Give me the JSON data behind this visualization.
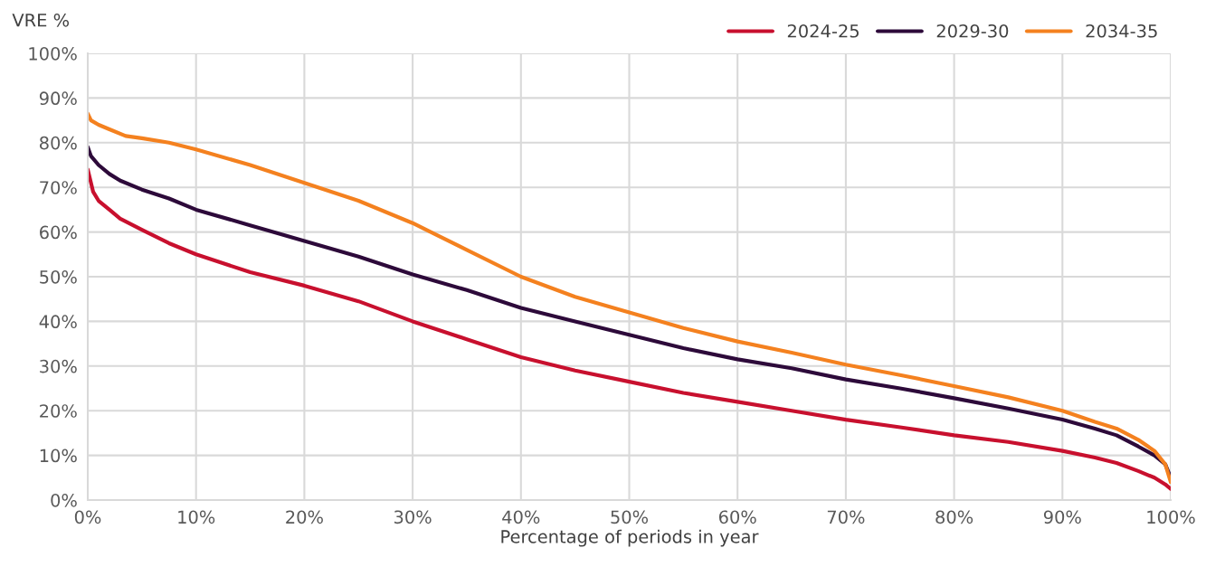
{
  "chart_data": {
    "type": "line",
    "ylabel": "VRE %",
    "xlabel": "Percentage of periods in year",
    "xlim": [
      0,
      100
    ],
    "ylim": [
      0,
      100
    ],
    "xticks": [
      {
        "value": 0,
        "label": "0%"
      },
      {
        "value": 10,
        "label": "10%"
      },
      {
        "value": 20,
        "label": "20%"
      },
      {
        "value": 30,
        "label": "30%"
      },
      {
        "value": 40,
        "label": "40%"
      },
      {
        "value": 50,
        "label": "50%"
      },
      {
        "value": 60,
        "label": "60%"
      },
      {
        "value": 70,
        "label": "70%"
      },
      {
        "value": 80,
        "label": "80%"
      },
      {
        "value": 90,
        "label": "90%"
      },
      {
        "value": 100,
        "label": "100%"
      }
    ],
    "yticks": [
      {
        "value": 0,
        "label": "0%"
      },
      {
        "value": 10,
        "label": "10%"
      },
      {
        "value": 20,
        "label": "20%"
      },
      {
        "value": 30,
        "label": "30%"
      },
      {
        "value": 40,
        "label": "40%"
      },
      {
        "value": 50,
        "label": "50%"
      },
      {
        "value": 60,
        "label": "60%"
      },
      {
        "value": 70,
        "label": "70%"
      },
      {
        "value": 80,
        "label": "80%"
      },
      {
        "value": 90,
        "label": "90%"
      },
      {
        "value": 100,
        "label": "100%"
      }
    ],
    "grid": true,
    "legend": "top right",
    "marker": "none",
    "line_style": "solid",
    "series": [
      {
        "name": "2024-25",
        "color": "#c8102e",
        "x": [
          0,
          0.5,
          1,
          2,
          3,
          5,
          7.5,
          10,
          15,
          20,
          25,
          30,
          35,
          40,
          45,
          50,
          55,
          60,
          65,
          70,
          75,
          80,
          85,
          90,
          93,
          95,
          97,
          98.5,
          99.5,
          100
        ],
        "values": [
          74,
          69,
          67,
          65,
          63,
          60.5,
          57.5,
          55,
          51,
          48,
          44.5,
          40,
          36,
          32,
          29,
          26.5,
          24,
          22,
          20,
          18,
          16.3,
          14.5,
          13,
          11,
          9.5,
          8.3,
          6.5,
          5,
          3.5,
          2.5
        ]
      },
      {
        "name": "2029-30",
        "color": "#2d0a3a",
        "x": [
          0,
          0.3,
          1,
          2,
          3,
          5,
          7.5,
          10,
          15,
          20,
          25,
          30,
          35,
          40,
          45,
          50,
          55,
          60,
          65,
          70,
          75,
          80,
          85,
          90,
          93,
          95,
          97,
          98.5,
          99.5,
          100
        ],
        "values": [
          79,
          77,
          75,
          73,
          71.5,
          69.5,
          67.5,
          65,
          61.5,
          58,
          54.5,
          50.5,
          47,
          43,
          40,
          37,
          34,
          31.5,
          29.5,
          27,
          25,
          22.8,
          20.5,
          18,
          16,
          14.5,
          12,
          10,
          8,
          5
        ]
      },
      {
        "name": "2034-35",
        "color": "#f4811f",
        "x": [
          0,
          0.3,
          1,
          2,
          3.5,
          5,
          7.5,
          10,
          15,
          20,
          25,
          30,
          35,
          40,
          45,
          50,
          55,
          60,
          65,
          70,
          75,
          80,
          85,
          90,
          93,
          95,
          97,
          98.5,
          99.5,
          100
        ],
        "values": [
          86.5,
          85,
          84,
          83,
          81.5,
          81,
          80,
          78.5,
          75,
          71,
          67,
          62,
          56,
          50,
          45.5,
          42,
          38.5,
          35.5,
          33,
          30.3,
          28,
          25.5,
          23,
          20,
          17.5,
          16,
          13.5,
          11,
          8,
          4
        ]
      }
    ]
  }
}
